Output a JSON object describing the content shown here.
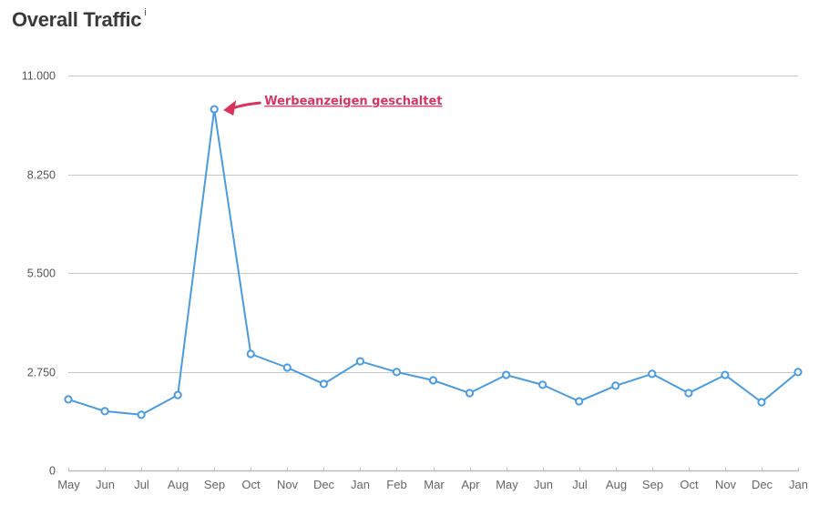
{
  "header": {
    "title": "Overall Traffic",
    "info_marker": "i"
  },
  "annotation": {
    "text": "Werbeanzeigen geschaltet",
    "color": "#d8345f",
    "target_index": 4
  },
  "colors": {
    "line": "#4a9be0",
    "grid": "#c8c8c8",
    "axis": "#bbbbbb"
  },
  "chart_data": {
    "type": "line",
    "title": "Overall Traffic",
    "xlabel": "",
    "ylabel": "",
    "categories": [
      "May",
      "Jun",
      "Jul",
      "Aug",
      "Sep",
      "Oct",
      "Nov",
      "Dec",
      "Jan",
      "Feb",
      "Mar",
      "Apr",
      "May",
      "Jun",
      "Jul",
      "Aug",
      "Sep",
      "Oct",
      "Nov",
      "Dec",
      "Jan"
    ],
    "series": [
      {
        "name": "Traffic",
        "values": [
          1980,
          1650,
          1550,
          2100,
          10060,
          3245,
          2865,
          2410,
          3040,
          2740,
          2510,
          2155,
          2660,
          2385,
          1925,
          2360,
          2690,
          2155,
          2660,
          1900,
          2740
        ]
      }
    ],
    "ylim": [
      0,
      11000
    ],
    "yticks": [
      0,
      2750,
      5500,
      8250,
      11000
    ],
    "ytick_labels": [
      "0",
      "2.750",
      "5.500",
      "8.250",
      "11.000"
    ],
    "grid": true,
    "legend": "none",
    "annotations": [
      {
        "text": "Werbeanzeigen geschaltet",
        "x": "Sep",
        "value": 10060
      }
    ]
  }
}
